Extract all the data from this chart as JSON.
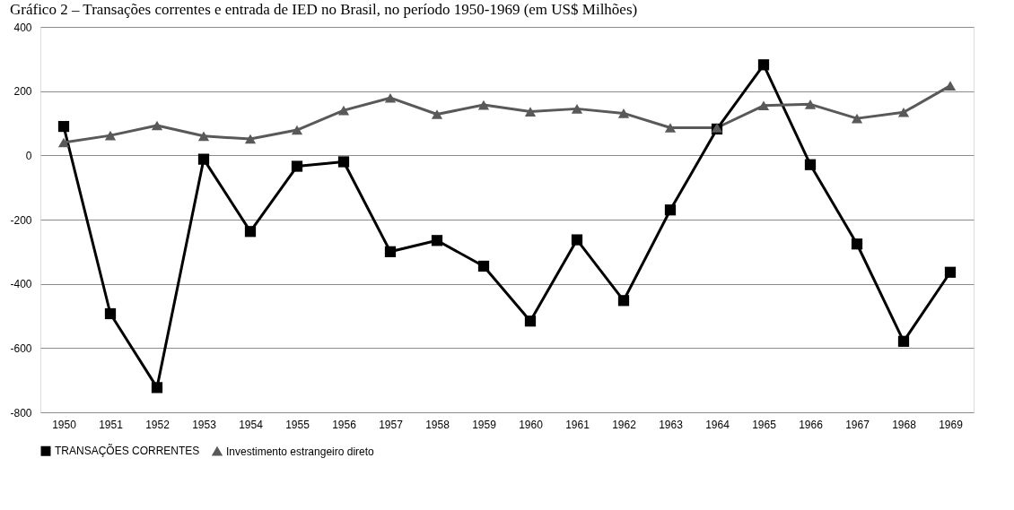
{
  "chart_data": {
    "type": "line",
    "title": "Gráfico 2 – Transações correntes e entrada de IED no Brasil, no período 1950-1969 (em US$ Milhões)",
    "categories": [
      "1950",
      "1951",
      "1952",
      "1953",
      "1954",
      "1955",
      "1956",
      "1957",
      "1958",
      "1959",
      "1960",
      "1961",
      "1962",
      "1963",
      "1964",
      "1965",
      "1966",
      "1967",
      "1968",
      "1969"
    ],
    "series": [
      {
        "name": "TRANSAÇÕES CORRENTES",
        "color": "#000000",
        "marker": "square",
        "values": [
          90,
          -493,
          -723,
          -12,
          -237,
          -34,
          -20,
          -300,
          -265,
          -345,
          -516,
          -263,
          -452,
          -170,
          82,
          282,
          -29,
          -276,
          -579,
          -364
        ]
      },
      {
        "name": "Investimento estrangeiro direto",
        "color": "#595959",
        "marker": "triangle",
        "values": [
          40,
          62,
          93,
          60,
          51,
          79,
          140,
          179,
          128,
          157,
          136,
          145,
          131,
          86,
          86,
          155,
          159,
          115,
          134,
          217
        ]
      }
    ],
    "ylim": [
      -800,
      400
    ],
    "yticks": [
      -800,
      -600,
      -400,
      -200,
      0,
      200,
      400
    ],
    "grid": "y",
    "legend": "bottom",
    "line_style": "solid"
  }
}
